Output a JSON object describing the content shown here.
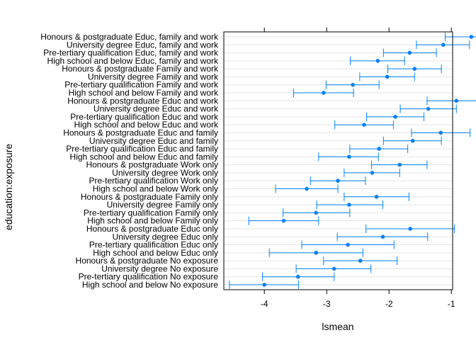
{
  "chart_data": {
    "type": "interval-dotplot",
    "xlabel": "lsmean",
    "ylabel": "education:exposure",
    "xlim": [
      -4.65,
      -0.98
    ],
    "xticks": [
      -4,
      -3,
      -2,
      -1
    ],
    "xtick_labels": [
      "-4",
      "-3",
      "-2",
      "-1"
    ],
    "grid": true,
    "colors": {
      "point": "#0080ff",
      "interval": "#0080ff",
      "grid": "#e6e6e6",
      "frame": "#000000"
    },
    "categories": [
      "High school and below No exposure",
      "Pre-tertiary qualification No exposure",
      "University degree No exposure",
      "Honours & postgraduate No exposure",
      "High school and below Educ only",
      "Pre-tertiary qualification Educ only",
      "University degree Educ only",
      "Honours & postgraduate Educ only",
      "High school and below Family only",
      "Pre-tertiary qualification Family only",
      "University degree Family only",
      "Honours & postgraduate Family only",
      "High school and below Work only",
      "Pre-tertiary qualification Work only",
      "University degree Work only",
      "Honours & postgraduate Work only",
      "High school and below Educ and family",
      "Pre-tertiary qualification Educ and family",
      "University degree Educ and family",
      "Honours & postgraduate Educ and family",
      "High school and below Educ and work",
      "Pre-tertiary qualification Educ and work",
      "University degree Educ and work",
      "Honours & postgraduate Educ and work",
      "High school and below Family and work",
      "Pre-tertiary qualification Family and work",
      "University degree Family and work",
      "Honours & postgraduate Family and work",
      "High school and below Educ, family and work",
      "Pre-tertiary qualification Educ, family and work",
      "University degree Educ, family and work",
      "Honours & postgraduate Educ, family and work"
    ],
    "series": [
      {
        "estimate": [
          -4.0,
          -3.46,
          -2.88,
          -2.46,
          -3.17,
          -2.66,
          -2.1,
          -1.66,
          -3.69,
          -3.17,
          -2.64,
          -2.2,
          -3.32,
          -2.82,
          -2.27,
          -1.83,
          -2.64,
          -2.16,
          -1.62,
          -1.17,
          -2.4,
          -1.9,
          -1.37,
          -0.92,
          -3.05,
          -2.58,
          -2.03,
          -1.59,
          -2.18,
          -1.67,
          -1.13,
          -0.68
        ],
        "lower": [
          -4.56,
          -4.03,
          -3.49,
          -3.05,
          -3.92,
          -3.4,
          -2.83,
          -2.37,
          -4.25,
          -3.7,
          -3.16,
          -2.72,
          -3.82,
          -3.26,
          -2.72,
          -2.28,
          -3.13,
          -2.63,
          -2.09,
          -1.64,
          -2.87,
          -2.36,
          -1.82,
          -1.39,
          -3.53,
          -3.01,
          -2.47,
          -2.02,
          -2.62,
          -2.09,
          -1.56,
          -1.1
        ],
        "upper": [
          -3.45,
          -2.88,
          -2.29,
          -1.87,
          -2.42,
          -1.92,
          -1.38,
          -0.95,
          -3.13,
          -2.63,
          -2.1,
          -1.68,
          -2.82,
          -2.38,
          -1.83,
          -1.39,
          -2.17,
          -1.7,
          -1.16,
          -0.7,
          -1.93,
          -1.44,
          -0.92,
          -0.46,
          -2.57,
          -2.16,
          -1.59,
          -1.16,
          -1.75,
          -1.24,
          -0.71,
          -0.27
        ]
      }
    ]
  }
}
